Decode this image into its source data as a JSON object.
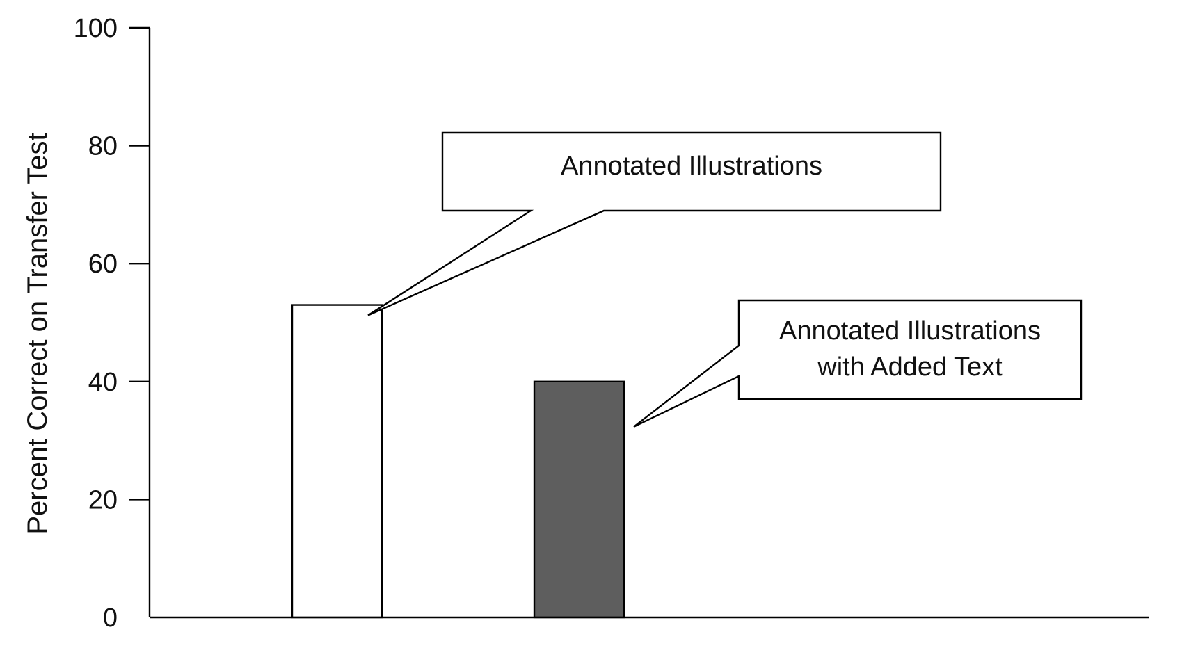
{
  "chart_data": {
    "type": "bar",
    "title": "",
    "xlabel": "",
    "ylabel": "Percent Correct on Transfer Test",
    "ylim": [
      0,
      100
    ],
    "yticks": [
      0,
      20,
      40,
      60,
      80,
      100
    ],
    "grid": false,
    "categories": [
      "Annotated Illustrations",
      "Annotated Illustrations with Added Text"
    ],
    "values": [
      53,
      40
    ],
    "bar_colors": [
      "#ffffff",
      "#5e5e5e"
    ],
    "annotations": [
      {
        "lines": [
          "Annotated Illustrations"
        ],
        "target": 0
      },
      {
        "lines": [
          "Annotated Illustrations",
          "with Added Text"
        ],
        "target": 1
      }
    ]
  }
}
